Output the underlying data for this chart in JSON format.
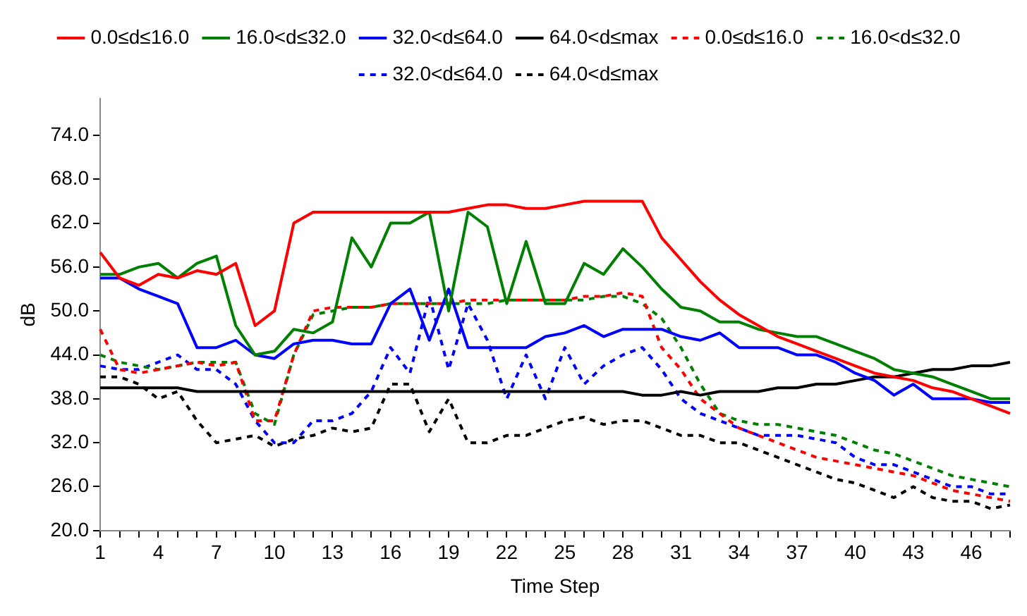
{
  "chart_data": {
    "type": "line",
    "xlabel": "Time Step",
    "ylabel": "dB",
    "legend": "top",
    "marker": "none",
    "categories": [
      "1",
      null,
      null,
      "4",
      null,
      null,
      "7",
      null,
      null,
      "10",
      null,
      null,
      "13",
      null,
      null,
      "16",
      null,
      null,
      "19",
      null,
      null,
      "22",
      null,
      null,
      "25",
      null,
      null,
      "28",
      null,
      null,
      "31",
      null,
      null,
      "34",
      null,
      null,
      "37",
      null,
      null,
      "40",
      null,
      null,
      "43",
      null,
      null,
      "46",
      null,
      null
    ],
    "ylim": [
      20,
      79
    ],
    "yticks": [
      {
        "value": 20,
        "label": "20.0"
      },
      {
        "value": 26,
        "label": "26.0"
      },
      {
        "value": 32,
        "label": "32.0"
      },
      {
        "value": 38,
        "label": "38.0"
      },
      {
        "value": 44,
        "label": "44.0"
      },
      {
        "value": 50,
        "label": "50.0"
      },
      {
        "value": 56,
        "label": "56.0"
      },
      {
        "value": 62,
        "label": "62.0"
      },
      {
        "value": 68,
        "label": "68.0"
      },
      {
        "value": 74,
        "label": "74.0"
      }
    ],
    "series": [
      {
        "name": "0.0≤d≤16.0",
        "color": "#ff0000",
        "line_style": "solid",
        "values": [
          58,
          54.5,
          53.5,
          55,
          54.5,
          55.5,
          55,
          56.5,
          48,
          50,
          62,
          63.5,
          63.5,
          63.5,
          63.5,
          63.5,
          63.5,
          63.5,
          63.5,
          64,
          64.5,
          64.5,
          64,
          64,
          64.5,
          65,
          65,
          65,
          65,
          60,
          57,
          54,
          51.5,
          49.5,
          48,
          46.5,
          45.5,
          44.5,
          43.5,
          42.5,
          41.5,
          41,
          40.5,
          39.5,
          39,
          38,
          37,
          36
        ]
      },
      {
        "name": "16.0<d≤32.0",
        "color": "#008000",
        "line_style": "solid",
        "values": [
          55,
          55,
          56,
          56.5,
          54.5,
          56.5,
          57.5,
          48,
          44,
          44.5,
          47.5,
          47,
          48.5,
          60,
          56,
          62,
          62,
          63.5,
          50,
          63.5,
          61.5,
          51,
          59.5,
          51,
          51,
          56.5,
          55,
          58.5,
          56,
          53,
          50.5,
          50,
          48.5,
          48.5,
          47.5,
          47,
          46.5,
          46.5,
          45.5,
          44.5,
          43.5,
          42,
          41.5,
          41,
          40,
          39,
          38,
          38
        ]
      },
      {
        "name": "32.0<d≤64.0",
        "color": "#0000ff",
        "line_style": "solid",
        "values": [
          54.5,
          54.5,
          53,
          52,
          51,
          45,
          45,
          46,
          44,
          43.5,
          45.5,
          46,
          46,
          45.5,
          45.5,
          51,
          53,
          46,
          53,
          45,
          45,
          45,
          45,
          46.5,
          47,
          48,
          46.5,
          47.5,
          47.5,
          47.5,
          46.5,
          46,
          47,
          45,
          45,
          45,
          44,
          44,
          43,
          41.5,
          40.5,
          38.5,
          40,
          38,
          38,
          38,
          37.5,
          37.5
        ]
      },
      {
        "name": "64.0<d≤max",
        "color": "#000000",
        "line_style": "solid",
        "values": [
          39.5,
          39.5,
          39.5,
          39.5,
          39.5,
          39,
          39,
          39,
          39,
          39,
          39,
          39,
          39,
          39,
          39,
          39,
          39,
          39,
          39,
          39,
          39,
          39,
          39,
          39,
          39,
          39,
          39,
          39,
          38.5,
          38.5,
          39,
          38.5,
          39,
          39,
          39,
          39.5,
          39.5,
          40,
          40,
          40.5,
          41,
          41,
          41.5,
          42,
          42,
          42.5,
          42.5,
          43
        ]
      },
      {
        "name": "0.0≤d≤16.0",
        "color": "#ff0000",
        "line_style": "dashed",
        "values": [
          47.5,
          42,
          41.5,
          42,
          42.5,
          43,
          42.5,
          43,
          35,
          35,
          44,
          50,
          50.5,
          50.5,
          50.5,
          51,
          51,
          51,
          51,
          51.5,
          51.5,
          51.5,
          51.5,
          51.5,
          51.5,
          52,
          52,
          52.5,
          52,
          45,
          42,
          38,
          36,
          34,
          33,
          32,
          31,
          30,
          29.5,
          29,
          28.5,
          28,
          27.5,
          26.5,
          25.5,
          25,
          24.5,
          24
        ]
      },
      {
        "name": "16.0<d≤32.0",
        "color": "#008000",
        "line_style": "dashed",
        "values": [
          44,
          43,
          42.5,
          42,
          42.5,
          43,
          43,
          43,
          36,
          34.5,
          44,
          49.5,
          50,
          50.5,
          50.5,
          51,
          51,
          51,
          51,
          51,
          51,
          51.5,
          51.5,
          51.5,
          51.5,
          51.5,
          52,
          52,
          51,
          49,
          45,
          40,
          36,
          35,
          34.5,
          34.5,
          34,
          33.5,
          33,
          32,
          31,
          30.5,
          29.5,
          28.5,
          27.5,
          27,
          26.5,
          26
        ]
      },
      {
        "name": "32.0<d≤64.0",
        "color": "#0000ff",
        "line_style": "dashed",
        "values": [
          42.5,
          42,
          42,
          43,
          44,
          42,
          42,
          40,
          35,
          32,
          32,
          35,
          35,
          36,
          39,
          45,
          41.5,
          52,
          42,
          51,
          46,
          38,
          44,
          38,
          45,
          40,
          42.5,
          44,
          45,
          42,
          38,
          36,
          35,
          34,
          33,
          33,
          33,
          32.5,
          32,
          30,
          29,
          29,
          28,
          27,
          26,
          26,
          25,
          25
        ]
      },
      {
        "name": "64.0<d≤max",
        "color": "#000000",
        "line_style": "dashed",
        "values": [
          41,
          41,
          40,
          38,
          39,
          35,
          32,
          32.5,
          33,
          31.5,
          32.5,
          33,
          34,
          33.5,
          34,
          40,
          40,
          33.5,
          38,
          32,
          32,
          33,
          33,
          34,
          35,
          35.5,
          34.5,
          35,
          35,
          34,
          33,
          33,
          32,
          32,
          31,
          30,
          29,
          28,
          27,
          26.5,
          25.5,
          24.5,
          26,
          24.5,
          24,
          24,
          23,
          23.5
        ]
      }
    ]
  }
}
